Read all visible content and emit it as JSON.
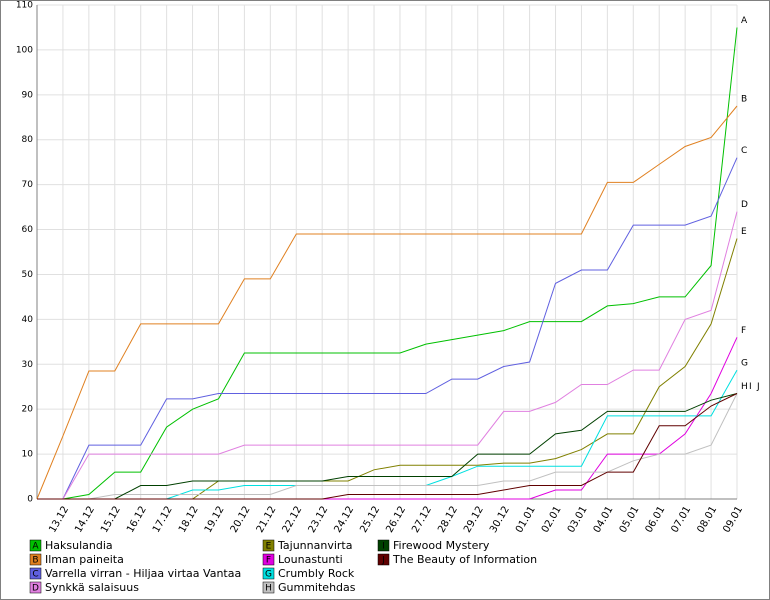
{
  "chart_data": {
    "type": "line",
    "categories": [
      null,
      "13.12",
      "14.12",
      "15.12",
      "16.12",
      "17.12",
      "18.12",
      "19.12",
      "20.12",
      "21.12",
      "22.12",
      "23.12",
      "24.12",
      "25.12",
      "26.12",
      "27.12",
      "28.12",
      "29.12",
      "30.12",
      "01.01",
      "02.01",
      "03.01",
      "04.01",
      "05.01",
      "06.01",
      "07.01",
      "08.01",
      "09.01"
    ],
    "ylim": [
      0,
      110
    ],
    "yticks": [
      0,
      10,
      20,
      30,
      40,
      50,
      60,
      70,
      80,
      90,
      100,
      110
    ],
    "grid": true,
    "series": [
      {
        "letter": "A",
        "name": "Haksulandia",
        "color": "#00c000",
        "values": [
          0,
          0,
          1,
          6,
          6,
          16,
          20,
          22.3,
          32.5,
          32.5,
          32.5,
          32.5,
          32.5,
          32.5,
          32.5,
          34.5,
          35.5,
          36.5,
          37.5,
          39.5,
          39.5,
          39.5,
          43,
          43.5,
          45,
          45,
          52,
          105
        ]
      },
      {
        "letter": "B",
        "name": "Ilman paineita",
        "color": "#e08020",
        "values": [
          0,
          14,
          28.5,
          28.5,
          39,
          39,
          39,
          39,
          49,
          49,
          59,
          59,
          59,
          59,
          59,
          59,
          59,
          59,
          59,
          59,
          59,
          59,
          70.5,
          70.5,
          74.5,
          78.5,
          80.5,
          87.5
        ]
      },
      {
        "letter": "C",
        "name": "Varrella virran - Hiljaa virtaa Vantaa",
        "color": "#6060e0",
        "values": [
          0,
          0,
          12,
          12,
          12,
          22.3,
          22.3,
          23.5,
          23.5,
          23.5,
          23.5,
          23.5,
          23.5,
          23.5,
          23.5,
          23.5,
          26.7,
          26.7,
          29.5,
          30.5,
          48,
          51,
          51,
          61,
          61,
          61,
          63,
          76
        ]
      },
      {
        "letter": "D",
        "name": "Synkkä salaisuus",
        "color": "#e080e0",
        "values": [
          0,
          0,
          10,
          10,
          10,
          10,
          10,
          10,
          12,
          12,
          12,
          12,
          12,
          12,
          12,
          12,
          12,
          12,
          19.5,
          19.5,
          21.5,
          25.5,
          25.5,
          28.7,
          28.7,
          40,
          42,
          64
        ]
      },
      {
        "letter": "E",
        "name": "Tajunnanvirta",
        "color": "#808000",
        "values": [
          0,
          0,
          0,
          0,
          0,
          0,
          0,
          4,
          4,
          4,
          4,
          4,
          4,
          6.5,
          7.5,
          7.5,
          7.5,
          7.5,
          8,
          8,
          9,
          11,
          14.5,
          14.5,
          25,
          29.5,
          39,
          58
        ]
      },
      {
        "letter": "F",
        "name": "Lounastunti",
        "color": "#e000e0",
        "values": [
          0,
          0,
          0,
          0,
          0,
          0,
          0,
          0,
          0,
          0,
          0,
          0,
          0,
          0,
          0,
          0,
          0,
          0,
          0,
          0,
          2,
          2,
          10,
          10,
          10,
          14.5,
          23.5,
          36
        ]
      },
      {
        "letter": "G",
        "name": "Crumbly Rock",
        "color": "#00e0e0",
        "values": [
          0,
          0,
          0,
          0,
          0,
          0,
          2,
          2,
          3,
          3,
          3,
          3,
          3,
          3,
          3,
          3,
          5,
          7.3,
          7.3,
          7.3,
          7.3,
          7.3,
          18.5,
          18.5,
          18.5,
          18.5,
          18.5,
          28.7
        ]
      },
      {
        "letter": "H",
        "name": "Gummitehdas",
        "color": "#c0c0c0",
        "values": [
          0,
          0,
          0,
          1,
          1,
          1,
          1,
          1,
          1,
          1,
          3,
          3,
          3,
          3,
          3,
          3,
          3,
          3,
          4,
          4,
          6,
          6,
          6,
          8.5,
          10,
          10,
          12,
          23.5
        ]
      },
      {
        "letter": "I",
        "name": "Firewood Mystery",
        "color": "#004000",
        "values": [
          0,
          0,
          0,
          0,
          3,
          3,
          4,
          4,
          4,
          4,
          4,
          4,
          5,
          5,
          5,
          5,
          5,
          10,
          10,
          10,
          14.5,
          15.3,
          19.5,
          19.5,
          19.5,
          19.5,
          22,
          23.5
        ]
      },
      {
        "letter": "J",
        "name": "The Beauty of Information",
        "color": "#600000",
        "values": [
          0,
          0,
          0,
          0,
          0,
          0,
          0,
          0,
          0,
          0,
          0,
          0,
          1,
          1,
          1,
          1,
          1,
          1,
          2,
          3,
          3,
          3,
          6,
          6,
          16.3,
          16.3,
          20.7,
          23.5
        ]
      }
    ]
  }
}
